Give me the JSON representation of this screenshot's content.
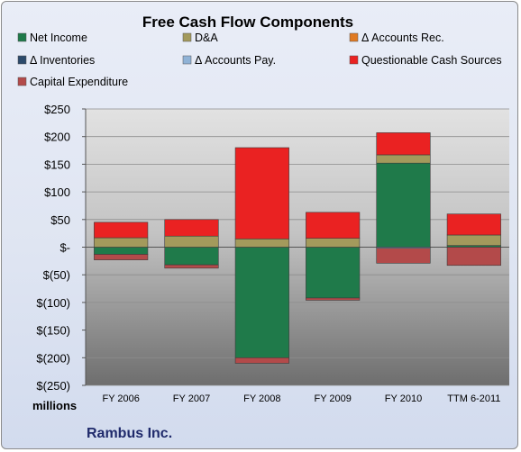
{
  "chart_data": {
    "type": "bar",
    "stacked": true,
    "title": "Free Cash Flow Components",
    "units_label": "millions",
    "company": "Rambus Inc.",
    "ylim": [
      -250,
      250
    ],
    "y_ticks": [
      250,
      200,
      150,
      100,
      50,
      0,
      -50,
      -100,
      -150,
      -200,
      -250
    ],
    "y_tick_labels": [
      "$250",
      "$200",
      "$150",
      "$100",
      "$50",
      "$-",
      "$(50)",
      "$(100)",
      "$(150)",
      "$(200)",
      "$(250)"
    ],
    "categories": [
      "FY 2006",
      "FY 2007",
      "FY 2008",
      "FY 2009",
      "FY 2010",
      "TTM 6-2011"
    ],
    "grid": true,
    "legend_position": "top",
    "series": [
      {
        "name": "Net Income",
        "color": "#1f7a4a",
        "values": [
          -13,
          -32,
          -200,
          -92,
          152,
          3
        ]
      },
      {
        "name": "D&A",
        "color": "#a39a5c",
        "values": [
          17,
          20,
          15,
          16,
          15,
          19
        ]
      },
      {
        "name": "Δ Accounts Rec.",
        "color": "#e07a22",
        "values": [
          0,
          0,
          0,
          0,
          0,
          0
        ]
      },
      {
        "name": "Δ Inventories",
        "color": "#2c4a6b",
        "values": [
          0,
          0,
          0,
          0,
          0,
          0
        ]
      },
      {
        "name": "Δ Accounts Pay.",
        "color": "#8fb2d6",
        "values": [
          0,
          0,
          0,
          0,
          -2,
          0
        ]
      },
      {
        "name": "Questionable Cash Sources",
        "color": "#ea2222",
        "values": [
          28,
          30,
          165,
          47,
          40,
          38
        ]
      },
      {
        "name": "Capital Expenditure",
        "color": "#b34a4a",
        "values": [
          -10,
          -6,
          -10,
          -4,
          -27,
          -33
        ]
      }
    ]
  }
}
